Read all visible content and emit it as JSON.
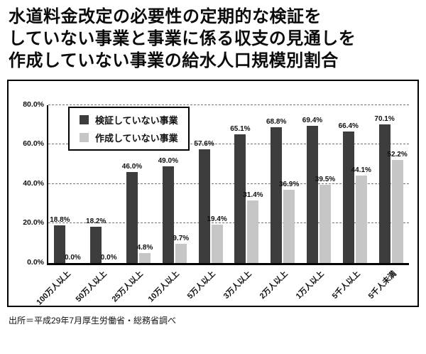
{
  "title": {
    "line1": "水道料金改定の必要性の定期的な検証を",
    "line2": "していない事業と事業に係る収支の見通しを",
    "line3": "作成していない事業の給水人口規模別割合"
  },
  "legend": {
    "series1": "検証していない事業",
    "series2": "作成していない事業"
  },
  "colors": {
    "series1": "#3d3d3d",
    "series2": "#c6c6c6",
    "axis": "#000000",
    "gridline": "#777777"
  },
  "source": "出所＝平成29年7月厚生労働省・総務省調べ",
  "chart_data": {
    "type": "bar",
    "title": "水道料金改定の必要性の定期的な検証をしていない事業と事業に係る収支の見通しを作成していない事業の給水人口規模別割合",
    "categories": [
      "100万人以上",
      "50万人以上",
      "25万人以上",
      "10万人以上",
      "5万人以上",
      "3万人以上",
      "2万人以上",
      "1万人以上",
      "5千人以上",
      "5千人未満"
    ],
    "series": [
      {
        "name": "検証していない事業",
        "color": "#3d3d3d",
        "values": [
          18.8,
          18.2,
          46.0,
          49.0,
          57.6,
          65.1,
          68.8,
          69.4,
          66.4,
          70.1
        ]
      },
      {
        "name": "作成していない事業",
        "color": "#c6c6c6",
        "values": [
          0.0,
          0.0,
          4.8,
          9.7,
          19.4,
          31.4,
          36.9,
          39.5,
          44.1,
          52.2
        ]
      }
    ],
    "xlabel": "",
    "ylabel": "",
    "ylim": [
      0,
      80
    ],
    "yticks": [
      "0.0%",
      "20.0%",
      "40.0%",
      "60.0%",
      "80.0%"
    ],
    "grid": "horizontal-dashed",
    "legend_position": "top-left-inside",
    "value_label_format": "{value}%"
  }
}
